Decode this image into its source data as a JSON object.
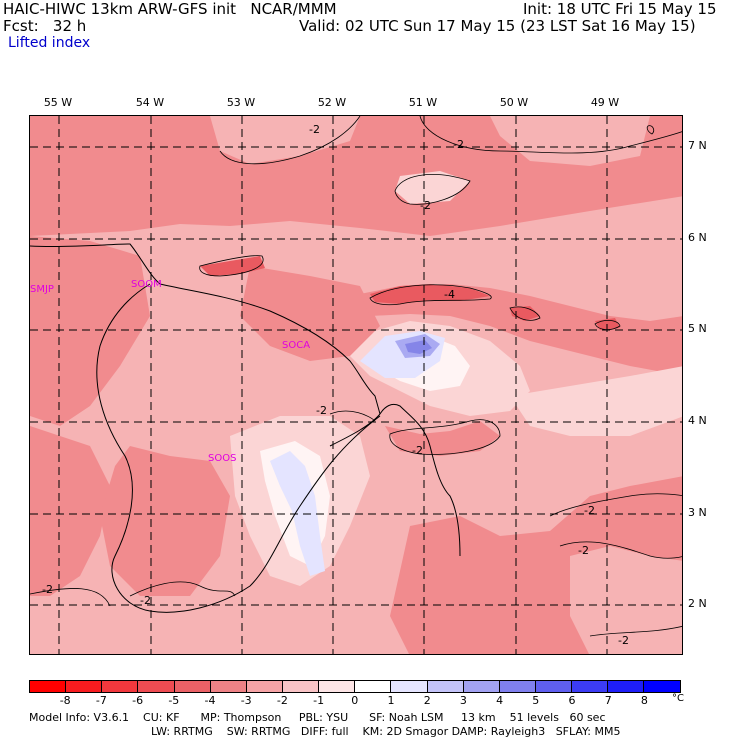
{
  "header": {
    "title": "HAIC-HIWC 13km ARW-GFS init   NCAR/MMM",
    "forecast": "Fcst:   32 h",
    "field": "Lifted index",
    "init": "Init: 18 UTC Fri 15 May 15",
    "valid": "Valid: 02 UTC Sun 17 May 15 (23 LST Sat 16 May 15)"
  },
  "map": {
    "lon_labels": [
      "55 W",
      "54 W",
      "53 W",
      "52 W",
      "51 W",
      "50 W",
      "49 W"
    ],
    "lat_labels": [
      "7 N",
      "6 N",
      "5 N",
      "4 N",
      "3 N",
      "2 N"
    ],
    "stations": [
      "SMJP",
      "SOOM",
      "SOCA",
      "SOOS"
    ],
    "contour_labels": [
      "-2",
      "-2",
      "-2",
      "-4",
      "-2",
      "-2",
      "-2",
      "-2",
      "-2",
      "-2",
      "-2"
    ],
    "colors": {
      "base": "#f6b3b4",
      "mid": "#f18b8e",
      "strong": "#e95a60",
      "light": "#fbd5d5",
      "white": "#fff4f4",
      "blue_light": "#e4e4ff",
      "blue_mid": "#aaaaf2",
      "blue_strong": "#8585e8"
    }
  },
  "colorbar": {
    "unit": "°C",
    "ticks": [
      "-8",
      "-7",
      "-6",
      "-5",
      "-4",
      "-3",
      "-2",
      "-1",
      "0",
      "1",
      "2",
      "3",
      "4",
      "5",
      "6",
      "7",
      "8"
    ],
    "colors": [
      "#ff0000",
      "#f81c1f",
      "#f2383d",
      "#ee4c52",
      "#ea6166",
      "#ee8286",
      "#f6a4a6",
      "#f9c4c6",
      "#fde5e6",
      "#ffffff",
      "#e5e5ff",
      "#c4c4f9",
      "#a2a2f2",
      "#8080ee",
      "#5f5fef",
      "#3c3cf4",
      "#1e1ef8",
      "#0000ff"
    ]
  },
  "footer": {
    "line1": "Model Info: V3.6.1    CU: KF      MP: Thompson     PBL: YSU      SF: Noah LSM     13 km    51 levels   60 sec",
    "line2": "LW: RRTMG    SW: RRTMG   DIFF: full    KM: 2D Smagor DAMP: Rayleigh3   SFLAY: MM5"
  }
}
